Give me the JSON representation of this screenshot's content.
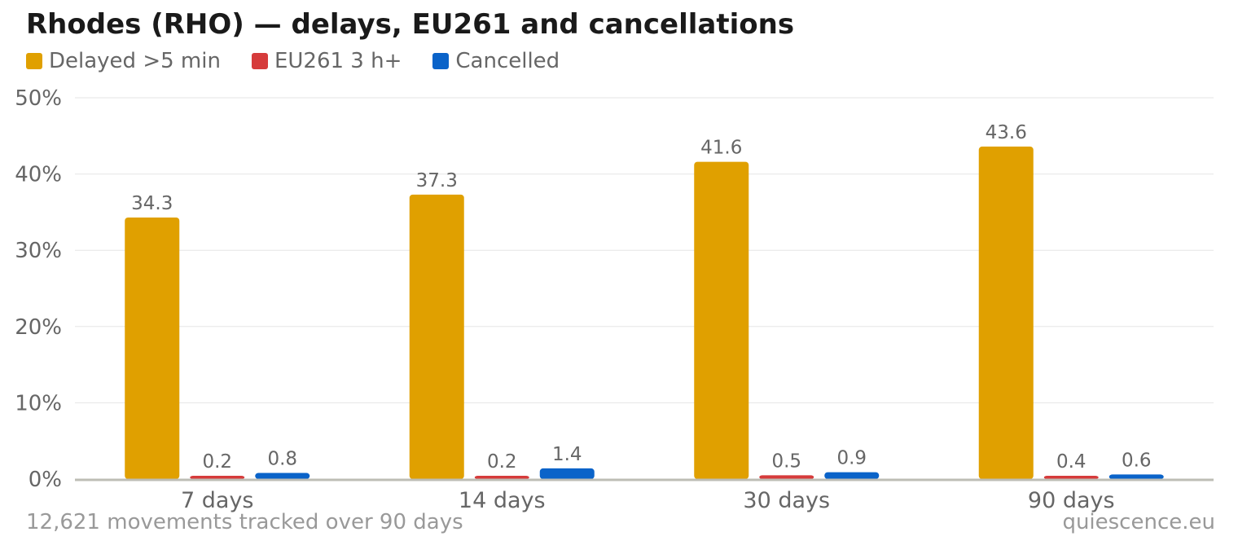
{
  "title": "Rhodes (RHO) — delays, EU261 and cancellations",
  "footer": {
    "left": "12,621 movements tracked over 90 days",
    "right": "quiescence.eu"
  },
  "chart_data": {
    "type": "bar",
    "title": "Rhodes (RHO) — delays, EU261 and cancellations",
    "xlabel": "",
    "ylabel": "",
    "categories": [
      "7 days",
      "14 days",
      "30 days",
      "90 days"
    ],
    "series": [
      {
        "name": "Delayed >5 min",
        "color": "#E0A000",
        "values": [
          34.3,
          37.3,
          41.6,
          43.6
        ]
      },
      {
        "name": "EU261 3 h+",
        "color": "#D63B3B",
        "values": [
          0.2,
          0.2,
          0.5,
          0.4
        ]
      },
      {
        "name": "Cancelled",
        "color": "#0A63C9",
        "values": [
          0.8,
          1.4,
          0.9,
          0.6
        ]
      }
    ],
    "ylim": [
      0,
      50
    ],
    "yticks": [
      "0%",
      "10%",
      "20%",
      "30%",
      "40%",
      "50%"
    ],
    "grid": true,
    "legend_position": "top-left"
  }
}
